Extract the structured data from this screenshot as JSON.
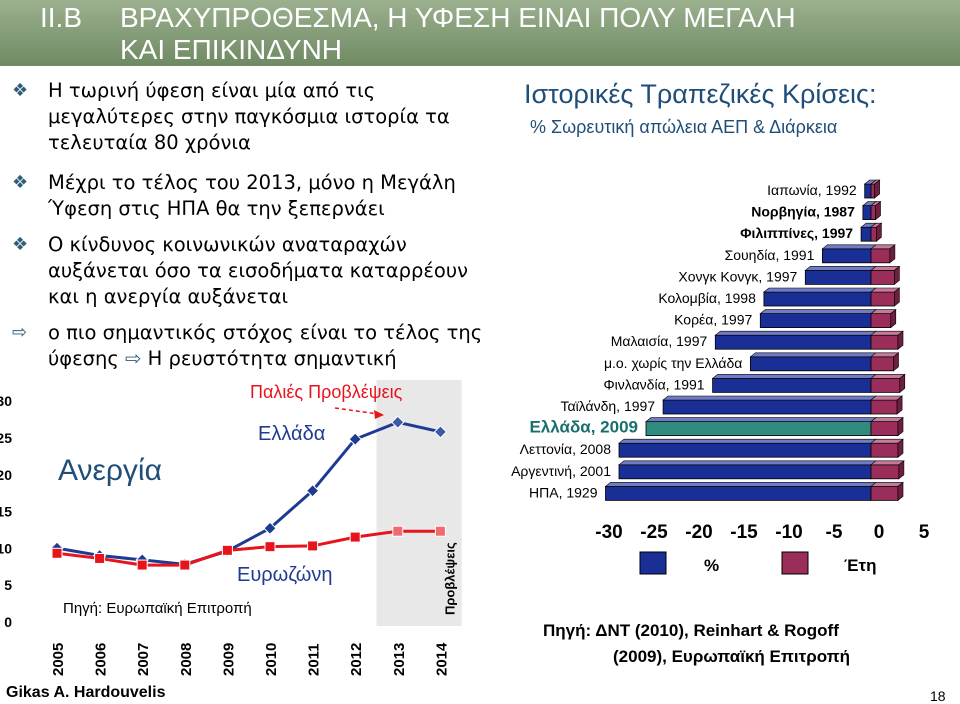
{
  "header": {
    "number": "II.B",
    "title_line1": "ΒΡΑΧΥΠΡΟΘΕΣΜΑ, Η ΥΦΕΣΗ ΕΙΝΑΙ ΠΟΛΥ ΜΕΓΑΛΗ",
    "title_line2": "ΚΑΙ ΕΠΙΚΙΝΔΥΝΗ"
  },
  "bullets": [
    {
      "icon": "diamond-bullet-icon",
      "text": "Η τωρινή ύφεση είναι μία από τις μεγαλύτερες στην παγκόσμια ιστορία τα τελευταία 80 χρόνια"
    },
    {
      "icon": "diamond-bullet-icon",
      "text": "Μέχρι το τέλος του 2013, μόνο η Μεγάλη Ύφεση στις ΗΠΑ θα την ξεπερνάει"
    },
    {
      "icon": "diamond-bullet-icon",
      "text": "Ο κίνδυνος κοινωνικών αναταραχών αυξάνεται όσο τα εισοδήματα καταρρέουν και η ανεργία αυξάνεται"
    },
    {
      "icon": "arrow-bullet-icon",
      "text_a": "ο πιο σημαντικός στόχος είναι το τέλος της ύφεσης",
      "text_b": "Η ρευστότητα σημαντική"
    }
  ],
  "colors": {
    "greece_line": "#1f3a93",
    "euro_line": "#e8141c",
    "pct_bar": "#1a2f95",
    "years_bar": "#9b2d5a",
    "greece_bar": "#2e8b7d",
    "title_color": "#1f4e79"
  },
  "chart_data": [
    {
      "type": "line",
      "label_greece": "Ελλάδα",
      "label_euro": "Ευρωζώνη",
      "label_unemployment": "Ανεργία",
      "label_old_forecasts": "Παλιές Προβλέψεις",
      "label_forecasts": "Προβλέψεις",
      "source": "Πηγή: Ευρωπαϊκή Επιτροπή",
      "x": [
        "2005",
        "2006",
        "2007",
        "2008",
        "2009",
        "2010",
        "2011",
        "2012",
        "2013",
        "2014"
      ],
      "yticks": [
        0,
        5,
        10,
        15,
        20,
        25,
        30
      ],
      "ylim": [
        0,
        30
      ],
      "series": [
        {
          "name": "Ελλάδα",
          "values": [
            9.9,
            8.9,
            8.3,
            7.7,
            9.5,
            12.6,
            17.7,
            24.7,
            27.0,
            25.7
          ]
        },
        {
          "name": "Ευρωζώνη",
          "values": [
            9.2,
            8.5,
            7.6,
            7.6,
            9.6,
            10.1,
            10.2,
            11.4,
            12.2,
            12.2
          ]
        }
      ]
    },
    {
      "type": "bar",
      "title": "Ιστορικές Τραπεζικές Κρίσεις:",
      "subtitle": "% Σωρευτική απώλεια ΑΕΠ & Διάρκεια",
      "categories": [
        "Ιαπωνία, 1992",
        "Νορβηγία, 1987",
        "Φιλιππίνες, 1997",
        "Σουηδία, 1991",
        "Χονγκ Κονγκ, 1997",
        "Κολομβία, 1998",
        "Κορέα, 1997",
        "Μαλαισία, 1997",
        "μ.ο. χωρίς την Ελλάδα",
        "Φινλανδία, 1991",
        "Ταϊλάνδη, 1997",
        "Ελλάδα, 2009",
        "Λεττονία, 2008",
        "Αργεντινή, 2001",
        "ΗΠΑ, 1929"
      ],
      "series": [
        {
          "name": "%",
          "values": [
            -0.7,
            -0.9,
            -1.1,
            -5.4,
            -7.3,
            -11.9,
            -12.3,
            -17.3,
            -13.4,
            -17.6,
            -23.1,
            -25.0,
            -28.0,
            -28.0,
            -29.5
          ]
        },
        {
          "name": "Έτη",
          "values": [
            0.4,
            0.5,
            0.6,
            2.1,
            2.6,
            2.6,
            2.2,
            3.0,
            2.5,
            3.2,
            2.9,
            3.0,
            3.0,
            3.1,
            3.0
          ]
        }
      ],
      "xticks": [
        "-30",
        "-25",
        "-20",
        "-15",
        "-10",
        "-5",
        "0",
        "5"
      ],
      "xlim": [
        -30,
        5
      ],
      "legend_pct": "%",
      "legend_years": "Έτη",
      "source_line1": "Πηγή:   ΔΝΤ (2010), Reinhart & Rogoff",
      "source_line2": "(2009), Ευρωπαϊκή Επιτροπή"
    }
  ],
  "footer": {
    "author": "Gikas A. Hardouvelis",
    "page": "18"
  }
}
